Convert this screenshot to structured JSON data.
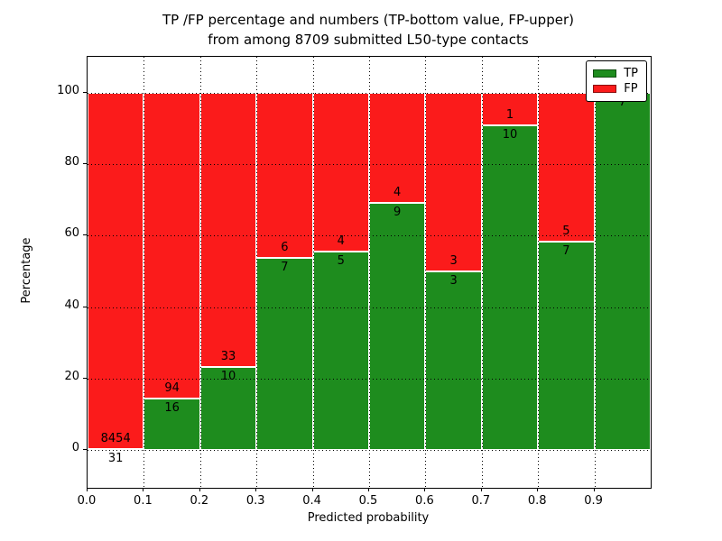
{
  "title": {
    "line1": "TP /FP percentage and numbers (TP-bottom value, FP-upper)",
    "line2": "from among 8709 submitted L50-type contacts"
  },
  "chart_data": {
    "type": "bar",
    "stacked": true,
    "title": "TP /FP percentage and numbers (TP-bottom value, FP-upper) from among 8709 submitted L50-type contacts",
    "xlabel": "Predicted probability",
    "ylabel": "Percentage",
    "total_contacts": 8709,
    "xlim": [
      0.0,
      1.0
    ],
    "ylim": [
      -10.5,
      110
    ],
    "x_ticks": [
      {
        "value": 0.0,
        "label": "0.0"
      },
      {
        "value": 0.1,
        "label": "0.1"
      },
      {
        "value": 0.2,
        "label": "0.2"
      },
      {
        "value": 0.3,
        "label": "0.3"
      },
      {
        "value": 0.4,
        "label": "0.4"
      },
      {
        "value": 0.5,
        "label": "0.5"
      },
      {
        "value": 0.6,
        "label": "0.6"
      },
      {
        "value": 0.7,
        "label": "0.7"
      },
      {
        "value": 0.8,
        "label": "0.8"
      },
      {
        "value": 0.9,
        "label": "0.9"
      }
    ],
    "y_ticks": [
      {
        "value": 0,
        "label": "0"
      },
      {
        "value": 20,
        "label": "20"
      },
      {
        "value": 40,
        "label": "40"
      },
      {
        "value": 60,
        "label": "60"
      },
      {
        "value": 80,
        "label": "80"
      },
      {
        "value": 100,
        "label": "100"
      }
    ],
    "categories": [
      "0.0-0.1",
      "0.1-0.2",
      "0.2-0.3",
      "0.3-0.4",
      "0.4-0.5",
      "0.5-0.6",
      "0.6-0.7",
      "0.7-0.8",
      "0.8-0.9",
      "0.9-1.0"
    ],
    "series": [
      {
        "name": "TP",
        "color": "#1e8c1e",
        "counts": [
          31,
          16,
          10,
          7,
          5,
          9,
          3,
          10,
          7,
          7
        ],
        "percent": [
          0.37,
          14.55,
          23.26,
          53.85,
          55.56,
          69.23,
          50.0,
          90.91,
          58.33,
          100.0
        ]
      },
      {
        "name": "FP",
        "color": "#fb1b1b",
        "counts": [
          8454,
          94,
          33,
          6,
          4,
          4,
          3,
          1,
          5,
          0
        ],
        "percent": [
          99.63,
          85.45,
          76.74,
          46.15,
          44.44,
          30.77,
          50.0,
          9.09,
          41.67,
          0.0
        ]
      }
    ],
    "grid": {
      "style": "dotted",
      "color": "#000000"
    },
    "legend": {
      "position": "upper right",
      "entries": [
        {
          "label": "TP",
          "color": "#1e8c1e"
        },
        {
          "label": "FP",
          "color": "#fb1b1b"
        }
      ]
    },
    "bar_edge_color": "#ffffff",
    "background_color": "#ffffff"
  }
}
